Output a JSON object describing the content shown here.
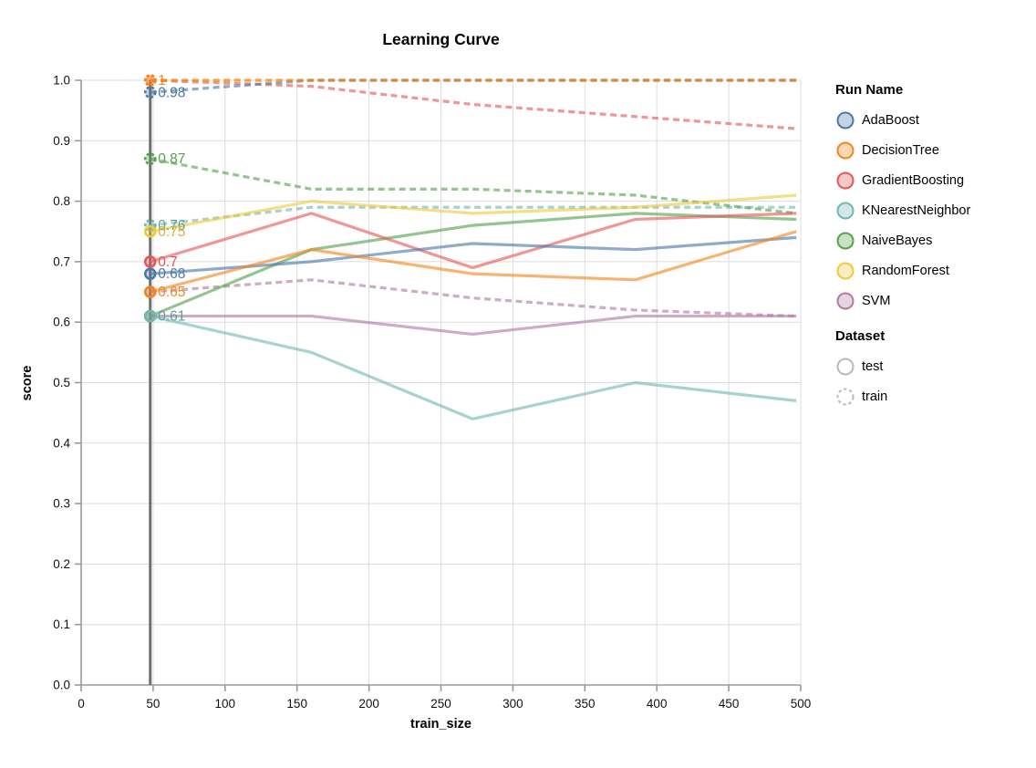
{
  "title": "Learning Curve",
  "axes": {
    "x": {
      "title": "train_size",
      "domain": [
        0,
        500
      ],
      "ticks": [
        0,
        50,
        100,
        150,
        200,
        250,
        300,
        350,
        400,
        450,
        500
      ]
    },
    "y": {
      "title": "score",
      "domain": [
        0.0,
        1.0
      ],
      "ticks": [
        "0.0",
        "0.1",
        "0.2",
        "0.3",
        "0.4",
        "0.5",
        "0.6",
        "0.7",
        "0.8",
        "0.9",
        "1.0"
      ]
    }
  },
  "legend": {
    "run_title": "Run Name",
    "runs": [
      {
        "name": "AdaBoost",
        "color": "#4c78a8"
      },
      {
        "name": "DecisionTree",
        "color": "#f58518"
      },
      {
        "name": "GradientBoosting",
        "color": "#e45756"
      },
      {
        "name": "KNearestNeighbor",
        "color": "#72b7b2"
      },
      {
        "name": "NaiveBayes",
        "color": "#54a24b"
      },
      {
        "name": "RandomForest",
        "color": "#eeca3b"
      },
      {
        "name": "SVM",
        "color": "#b279a2"
      }
    ],
    "dataset_title": "Dataset",
    "datasets": [
      {
        "name": "test",
        "style": "solid"
      },
      {
        "name": "train",
        "style": "dashed"
      }
    ],
    "dataset_symbol_color": "#b9b9b9"
  },
  "annotations": {
    "rule_x": 48,
    "rule_color": "#6f6f6f",
    "value_labels": [
      {
        "text": "1",
        "value": 1.0,
        "color": "#f58518"
      },
      {
        "text": "0.98",
        "value": 0.98,
        "color": "#4c78a8"
      },
      {
        "text": "0.87",
        "value": 0.87,
        "color": "#54a24b"
      },
      {
        "text": "0.76",
        "value": 0.76,
        "color": "#55a29c"
      },
      {
        "text": "0.75",
        "value": 0.75,
        "color": "#d9b23a"
      },
      {
        "text": "0.7",
        "value": 0.7,
        "color": "#e45756"
      },
      {
        "text": "0.68",
        "value": 0.68,
        "color": "#4c78a8"
      },
      {
        "text": "0.65",
        "value": 0.65,
        "color": "#f58518"
      },
      {
        "text": "0.61",
        "value": 0.61,
        "color": "#55a29c"
      }
    ]
  },
  "chart_data": {
    "type": "line",
    "title": "Learning Curve",
    "xlabel": "train_size",
    "ylabel": "score",
    "xlim": [
      0,
      500
    ],
    "ylim": [
      0.0,
      1.0
    ],
    "grid": true,
    "legend_position": "right",
    "x": [
      48,
      160,
      272,
      385,
      497
    ],
    "series": [
      {
        "name": "KNearestNeighbor",
        "dataset": "train",
        "color": "#72b7b2",
        "dashed": true,
        "values": [
          0.76,
          0.79,
          0.79,
          0.79,
          0.79
        ]
      },
      {
        "name": "NaiveBayes",
        "dataset": "train",
        "color": "#54a24b",
        "dashed": true,
        "values": [
          0.87,
          0.82,
          0.82,
          0.81,
          0.78
        ]
      },
      {
        "name": "SVM",
        "dataset": "train",
        "color": "#b279a2",
        "dashed": true,
        "values": [
          0.65,
          0.67,
          0.64,
          0.62,
          0.61
        ]
      },
      {
        "name": "RandomForest",
        "dataset": "train",
        "color": "#eeca3b",
        "dashed": true,
        "values": [
          1.0,
          1.0,
          1.0,
          1.0,
          1.0
        ]
      },
      {
        "name": "GradientBoosting",
        "dataset": "train",
        "color": "#e45756",
        "dashed": true,
        "values": [
          1.0,
          0.99,
          0.96,
          0.94,
          0.92
        ]
      },
      {
        "name": "AdaBoost",
        "dataset": "train",
        "color": "#4c78a8",
        "dashed": true,
        "values": [
          0.98,
          1.0,
          1.0,
          1.0,
          1.0
        ]
      },
      {
        "name": "DecisionTree",
        "dataset": "train",
        "color": "#f58518",
        "dashed": true,
        "values": [
          1.0,
          1.0,
          1.0,
          1.0,
          1.0
        ]
      },
      {
        "name": "SVM",
        "dataset": "test",
        "color": "#b279a2",
        "dashed": false,
        "values": [
          0.61,
          0.61,
          0.58,
          0.61,
          0.61
        ]
      },
      {
        "name": "NaiveBayes",
        "dataset": "test",
        "color": "#54a24b",
        "dashed": false,
        "values": [
          0.61,
          0.72,
          0.76,
          0.78,
          0.77
        ]
      },
      {
        "name": "GradientBoosting",
        "dataset": "test",
        "color": "#e45756",
        "dashed": false,
        "values": [
          0.7,
          0.78,
          0.69,
          0.77,
          0.78
        ]
      },
      {
        "name": "AdaBoost",
        "dataset": "test",
        "color": "#4c78a8",
        "dashed": false,
        "values": [
          0.68,
          0.7,
          0.73,
          0.72,
          0.74
        ]
      },
      {
        "name": "RandomForest",
        "dataset": "test",
        "color": "#eeca3b",
        "dashed": false,
        "values": [
          0.75,
          0.8,
          0.78,
          0.79,
          0.81
        ]
      },
      {
        "name": "DecisionTree",
        "dataset": "test",
        "color": "#f58518",
        "dashed": false,
        "values": [
          0.65,
          0.72,
          0.68,
          0.67,
          0.75
        ]
      },
      {
        "name": "KNearestNeighbor",
        "dataset": "test",
        "color": "#72b7b2",
        "dashed": false,
        "values": [
          0.61,
          0.55,
          0.44,
          0.5,
          0.47
        ]
      }
    ]
  }
}
